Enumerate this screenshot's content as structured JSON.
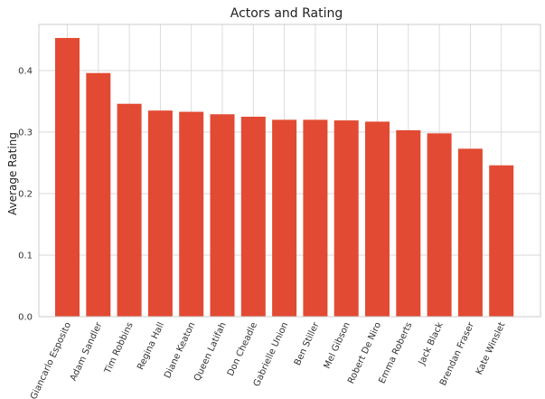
{
  "chart_data": {
    "type": "bar",
    "title": "Actors and Rating",
    "xlabel": "",
    "ylabel": "Average Rating",
    "categories": [
      "Giancarlo Esposito",
      "Adam Sandler",
      "Tim Robbins",
      "Regina Hall",
      "Diane Keaton",
      "Queen Latifah",
      "Don Cheadle",
      "Gabrielle Union",
      "Ben Stiller",
      "Mel Gibson",
      "Robert De Niro",
      "Emma Roberts",
      "Jack Black",
      "Brendan Fraser",
      "Kate Winslet"
    ],
    "values": [
      0.453,
      0.396,
      0.346,
      0.335,
      0.333,
      0.329,
      0.325,
      0.32,
      0.32,
      0.319,
      0.317,
      0.303,
      0.298,
      0.273,
      0.246
    ],
    "ylim": [
      0,
      0.475
    ],
    "yticks": [
      0.0,
      0.1,
      0.2,
      0.3,
      0.4
    ],
    "ytick_labels": [
      "0.0",
      "0.1",
      "0.2",
      "0.3",
      "0.4"
    ],
    "grid": true,
    "bar_color": "#e24a33"
  }
}
